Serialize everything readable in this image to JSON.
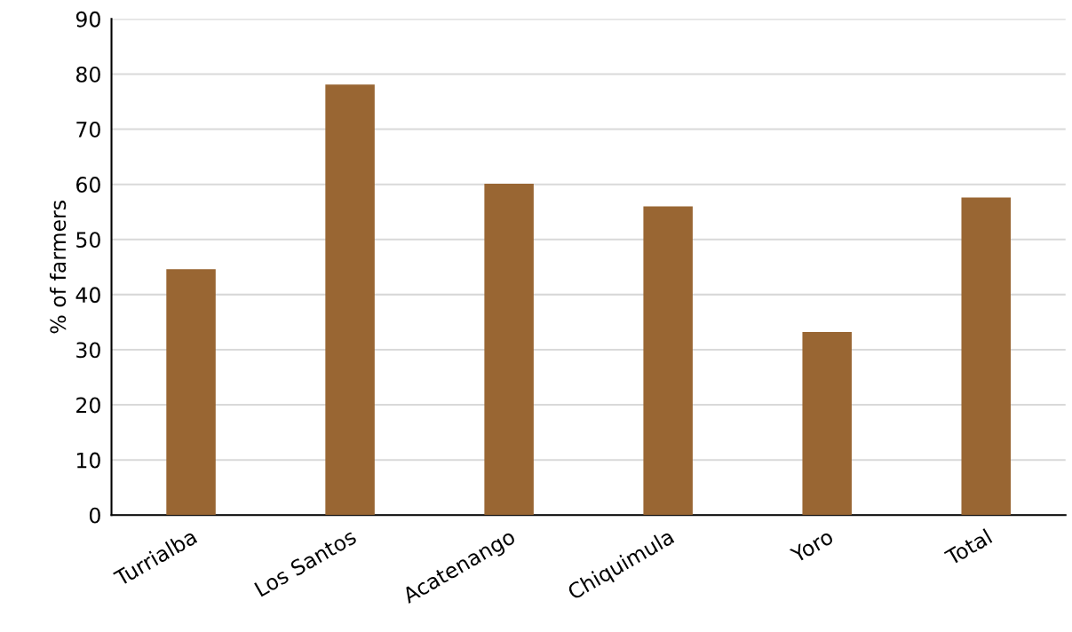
{
  "chart_data": {
    "type": "bar",
    "ylabel": "% of farmers",
    "categories": [
      "Turrialba",
      "Los Santos",
      "Acatenango",
      "Chiquimula",
      "Yoro",
      "Total"
    ],
    "values": [
      44.6,
      78.1,
      60.1,
      56.0,
      33.2,
      57.6
    ],
    "color": "#996633",
    "ylim": [
      0,
      90
    ],
    "yticks": [
      0,
      10,
      20,
      30,
      40,
      50,
      60,
      70,
      80,
      90
    ],
    "grid": "y",
    "legend": false
  }
}
